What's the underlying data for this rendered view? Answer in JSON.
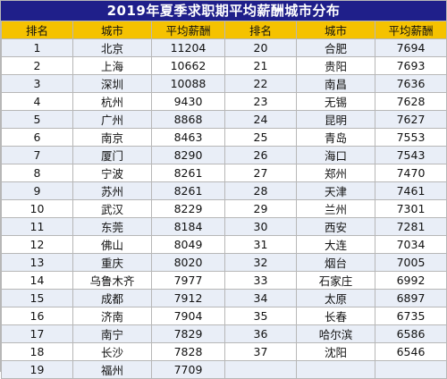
{
  "title": "2019年夏季求职期平均薪酬城市分布",
  "headers": [
    "排名",
    "城市",
    "平均薪酬",
    "排名",
    "城市",
    "平均薪酬"
  ],
  "colors": {
    "title_bg": "#1f1f8a",
    "header_bg": "#f5c200",
    "stripe": "#e9eef7"
  },
  "left": [
    {
      "rank": "1",
      "city": "北京",
      "salary": "11204"
    },
    {
      "rank": "2",
      "city": "上海",
      "salary": "10662"
    },
    {
      "rank": "3",
      "city": "深圳",
      "salary": "10088"
    },
    {
      "rank": "4",
      "city": "杭州",
      "salary": "9430"
    },
    {
      "rank": "5",
      "city": "广州",
      "salary": "8868"
    },
    {
      "rank": "6",
      "city": "南京",
      "salary": "8463"
    },
    {
      "rank": "7",
      "city": "厦门",
      "salary": "8290"
    },
    {
      "rank": "8",
      "city": "宁波",
      "salary": "8261"
    },
    {
      "rank": "9",
      "city": "苏州",
      "salary": "8261"
    },
    {
      "rank": "10",
      "city": "武汉",
      "salary": "8229"
    },
    {
      "rank": "11",
      "city": "东莞",
      "salary": "8184"
    },
    {
      "rank": "12",
      "city": "佛山",
      "salary": "8049"
    },
    {
      "rank": "13",
      "city": "重庆",
      "salary": "8020"
    },
    {
      "rank": "14",
      "city": "乌鲁木齐",
      "salary": "7977"
    },
    {
      "rank": "15",
      "city": "成都",
      "salary": "7912"
    },
    {
      "rank": "16",
      "city": "济南",
      "salary": "7904"
    },
    {
      "rank": "17",
      "city": "南宁",
      "salary": "7829"
    },
    {
      "rank": "18",
      "city": "长沙",
      "salary": "7828"
    },
    {
      "rank": "19",
      "city": "福州",
      "salary": "7709"
    }
  ],
  "right": [
    {
      "rank": "20",
      "city": "合肥",
      "salary": "7694"
    },
    {
      "rank": "21",
      "city": "贵阳",
      "salary": "7693"
    },
    {
      "rank": "22",
      "city": "南昌",
      "salary": "7636"
    },
    {
      "rank": "23",
      "city": "无锡",
      "salary": "7628"
    },
    {
      "rank": "24",
      "city": "昆明",
      "salary": "7627"
    },
    {
      "rank": "25",
      "city": "青岛",
      "salary": "7553"
    },
    {
      "rank": "26",
      "city": "海口",
      "salary": "7543"
    },
    {
      "rank": "27",
      "city": "郑州",
      "salary": "7470"
    },
    {
      "rank": "28",
      "city": "天津",
      "salary": "7461"
    },
    {
      "rank": "29",
      "city": "兰州",
      "salary": "7301"
    },
    {
      "rank": "30",
      "city": "西安",
      "salary": "7281"
    },
    {
      "rank": "31",
      "city": "大连",
      "salary": "7034"
    },
    {
      "rank": "32",
      "city": "烟台",
      "salary": "7005"
    },
    {
      "rank": "33",
      "city": "石家庄",
      "salary": "6992"
    },
    {
      "rank": "34",
      "city": "太原",
      "salary": "6897"
    },
    {
      "rank": "35",
      "city": "长春",
      "salary": "6735"
    },
    {
      "rank": "36",
      "city": "哈尔滨",
      "salary": "6586"
    },
    {
      "rank": "37",
      "city": "沈阳",
      "salary": "6546"
    },
    {
      "rank": "",
      "city": "",
      "salary": ""
    }
  ]
}
